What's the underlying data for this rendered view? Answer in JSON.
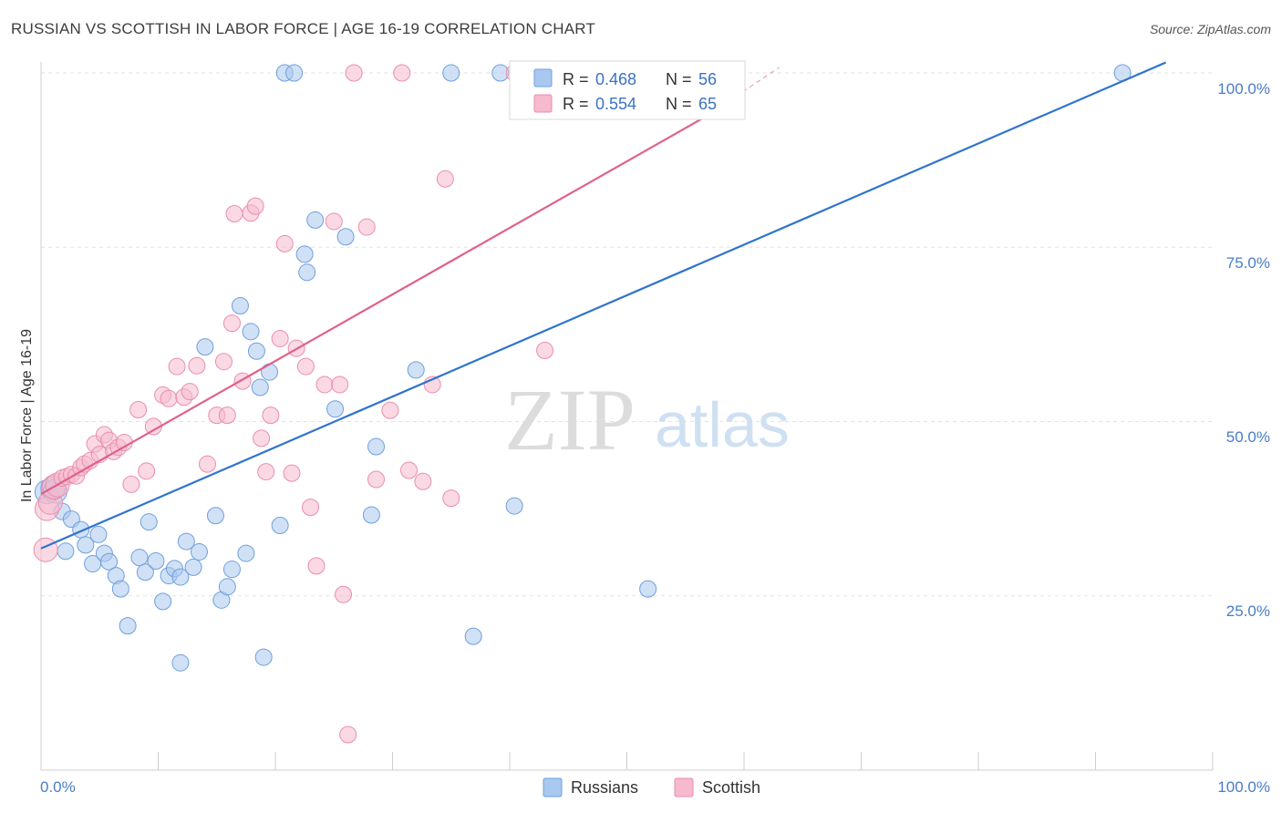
{
  "header": {
    "title": "RUSSIAN VS SCOTTISH IN LABOR FORCE | AGE 16-19 CORRELATION CHART",
    "source": "Source: ZipAtlas.com"
  },
  "watermark": {
    "zip": "ZIP",
    "atlas": "atlas"
  },
  "colors": {
    "russians_fill": "#a9c8ef",
    "russians_stroke": "#6f9fdc",
    "russians_line": "#2f73cf",
    "scottish_fill": "#f6b9cd",
    "scottish_stroke": "#e98eab",
    "scottish_line": "#e0608c",
    "tick_label": "#4a7cc8",
    "grid": "#e2e2e2"
  },
  "chart_data": {
    "type": "scatter",
    "title": "RUSSIAN VS SCOTTISH IN LABOR FORCE | AGE 16-19 CORRELATION CHART",
    "xlabel": "",
    "ylabel": "In Labor Force | Age 16-19",
    "xlim": [
      0,
      100
    ],
    "ylim": [
      0,
      105
    ],
    "x_ticks": [
      0,
      100
    ],
    "x_tick_labels": [
      "0.0%",
      "100.0%"
    ],
    "y_ticks": [
      25,
      50,
      75,
      100
    ],
    "y_tick_labels": [
      "25.0%",
      "50.0%",
      "75.0%",
      "100.0%"
    ],
    "legend": [
      {
        "name": "Russians",
        "r_label": "R =",
        "r": "0.468",
        "n_label": "N =",
        "n": "56"
      },
      {
        "name": "Scottish",
        "r_label": "R =",
        "r": "0.554",
        "n_label": "N =",
        "n": "65"
      }
    ],
    "series": [
      {
        "name": "Russians",
        "trend": {
          "x0": 0,
          "y0": 31.8,
          "x1": 96,
          "y1": 101.5
        },
        "points": [
          [
            0.5,
            39.9
          ],
          [
            1.0,
            40.4
          ],
          [
            1.2,
            40.0
          ],
          [
            1.8,
            37.1
          ],
          [
            2.1,
            31.4
          ],
          [
            2.6,
            36.0
          ],
          [
            3.4,
            34.5
          ],
          [
            3.8,
            32.3
          ],
          [
            4.4,
            29.6
          ],
          [
            4.9,
            33.8
          ],
          [
            5.4,
            31.1
          ],
          [
            5.8,
            29.9
          ],
          [
            6.4,
            27.9
          ],
          [
            6.8,
            26.0
          ],
          [
            7.4,
            20.7
          ],
          [
            8.4,
            30.5
          ],
          [
            8.9,
            28.4
          ],
          [
            9.2,
            35.6
          ],
          [
            9.8,
            30.0
          ],
          [
            10.4,
            24.2
          ],
          [
            10.9,
            27.9
          ],
          [
            11.4,
            28.9
          ],
          [
            11.9,
            27.7
          ],
          [
            12.4,
            32.8
          ],
          [
            13.0,
            29.1
          ],
          [
            13.5,
            31.3
          ],
          [
            11.9,
            15.4
          ],
          [
            14.0,
            60.7
          ],
          [
            14.9,
            36.5
          ],
          [
            15.4,
            24.4
          ],
          [
            15.9,
            26.3
          ],
          [
            16.3,
            28.8
          ],
          [
            17.0,
            66.6
          ],
          [
            17.5,
            31.1
          ],
          [
            17.9,
            62.9
          ],
          [
            18.4,
            60.1
          ],
          [
            18.7,
            54.9
          ],
          [
            19.5,
            57.1
          ],
          [
            19.0,
            16.2
          ],
          [
            20.4,
            35.1
          ],
          [
            20.8,
            100.0
          ],
          [
            21.6,
            100.0
          ],
          [
            22.5,
            74.0
          ],
          [
            22.7,
            71.4
          ],
          [
            23.4,
            78.9
          ],
          [
            25.1,
            51.8
          ],
          [
            26.0,
            76.5
          ],
          [
            28.2,
            36.6
          ],
          [
            28.6,
            46.4
          ],
          [
            32.0,
            57.4
          ],
          [
            35.0,
            100.0
          ],
          [
            36.9,
            19.2
          ],
          [
            39.2,
            100.0
          ],
          [
            40.4,
            37.9
          ],
          [
            51.8,
            26.0
          ],
          [
            92.3,
            100.0
          ]
        ]
      },
      {
        "name": "Scottish",
        "trend": {
          "x0": 0,
          "y0": 39.6,
          "x1": 57,
          "y1": 94.0,
          "dash_x1": 63,
          "dash_y1": 100.8
        },
        "points": [
          [
            0.4,
            31.6
          ],
          [
            0.5,
            37.5
          ],
          [
            0.8,
            38.4
          ],
          [
            1.1,
            40.6
          ],
          [
            1.4,
            40.9
          ],
          [
            1.8,
            41.9
          ],
          [
            2.2,
            42.1
          ],
          [
            2.6,
            42.4
          ],
          [
            3.0,
            42.2
          ],
          [
            3.4,
            43.4
          ],
          [
            3.7,
            43.9
          ],
          [
            4.2,
            44.4
          ],
          [
            4.6,
            46.8
          ],
          [
            5.0,
            45.3
          ],
          [
            5.4,
            48.1
          ],
          [
            5.8,
            47.3
          ],
          [
            6.2,
            45.7
          ],
          [
            6.6,
            46.3
          ],
          [
            7.1,
            47.0
          ],
          [
            7.7,
            41.0
          ],
          [
            8.3,
            51.7
          ],
          [
            9.0,
            42.9
          ],
          [
            9.6,
            49.3
          ],
          [
            10.4,
            53.8
          ],
          [
            10.9,
            53.3
          ],
          [
            11.6,
            57.9
          ],
          [
            12.2,
            53.5
          ],
          [
            12.7,
            54.3
          ],
          [
            13.3,
            58.0
          ],
          [
            14.2,
            43.9
          ],
          [
            15.0,
            50.9
          ],
          [
            15.9,
            50.9
          ],
          [
            15.6,
            58.6
          ],
          [
            16.3,
            64.1
          ],
          [
            16.5,
            79.8
          ],
          [
            17.2,
            55.8
          ],
          [
            17.9,
            79.9
          ],
          [
            18.3,
            80.9
          ],
          [
            18.8,
            47.6
          ],
          [
            19.2,
            42.8
          ],
          [
            19.6,
            50.9
          ],
          [
            20.4,
            61.9
          ],
          [
            20.8,
            75.5
          ],
          [
            21.4,
            42.6
          ],
          [
            21.8,
            60.5
          ],
          [
            22.6,
            57.9
          ],
          [
            23.0,
            37.7
          ],
          [
            23.5,
            29.3
          ],
          [
            24.2,
            55.3
          ],
          [
            25.0,
            78.7
          ],
          [
            25.5,
            55.3
          ],
          [
            25.8,
            25.2
          ],
          [
            26.2,
            5.1
          ],
          [
            26.7,
            100.0
          ],
          [
            27.8,
            77.9
          ],
          [
            28.6,
            41.7
          ],
          [
            29.8,
            51.6
          ],
          [
            30.8,
            100.0
          ],
          [
            31.4,
            43.0
          ],
          [
            32.6,
            41.4
          ],
          [
            33.4,
            55.3
          ],
          [
            34.5,
            84.8
          ],
          [
            35.0,
            39.0
          ],
          [
            40.4,
            100.0
          ],
          [
            43.0,
            60.2
          ]
        ]
      }
    ]
  }
}
